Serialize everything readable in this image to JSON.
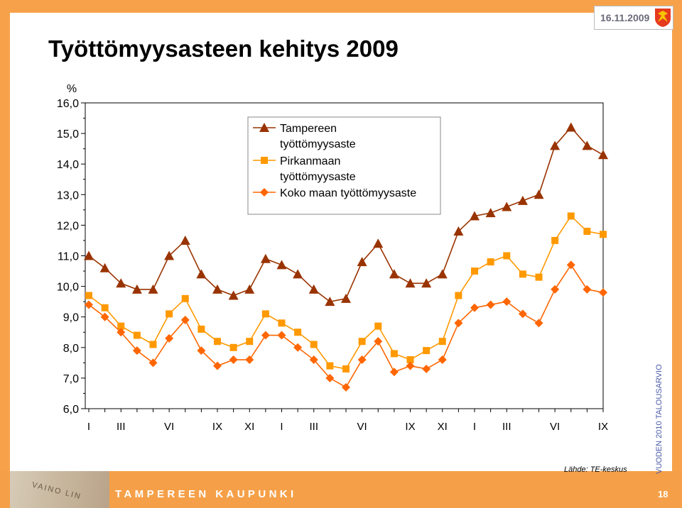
{
  "header": {
    "date": "16.11.2009"
  },
  "title": "Työttömyysasteen kehitys 2009",
  "side_label": "VUODEN 2010 TALOUSARVIO",
  "source": "Lähde: TE-keskus",
  "footer": {
    "city": "TAMPEREEN KAUPUNKI",
    "page": "18",
    "decoration_text": "VAINO LIN"
  },
  "colors": {
    "frame": "#f7a24a",
    "tampere": "#993300",
    "pirkanmaa": "#ff9900",
    "koko_maa": "#ff6600"
  },
  "chart_data": {
    "type": "line",
    "title": "Työttömyysasteen kehitys 2009",
    "ylabel": "%",
    "ylim": [
      6,
      16
    ],
    "yticks": [
      "6,0",
      "7,0",
      "8,0",
      "9,0",
      "10,0",
      "11,0",
      "12,0",
      "13,0",
      "14,0",
      "15,0",
      "16,0"
    ],
    "x_tick_labels": [
      "I",
      "III",
      "VI",
      "IX",
      "XI",
      "I",
      "III",
      "VI",
      "IX",
      "XI",
      "I",
      "III",
      "VI",
      "IX"
    ],
    "x_tick_positions": [
      1,
      3,
      6,
      9,
      11,
      13,
      15,
      18,
      21,
      23,
      25,
      27,
      30,
      33
    ],
    "legend_position": "top-center",
    "grid": false,
    "series": [
      {
        "name": "Tampereen työttömyysaste",
        "marker": "triangle",
        "values": [
          11.0,
          10.6,
          10.1,
          9.9,
          9.9,
          11.0,
          11.5,
          10.4,
          9.9,
          9.7,
          9.9,
          10.9,
          10.7,
          10.4,
          9.9,
          9.5,
          9.6,
          10.8,
          11.4,
          10.4,
          10.1,
          10.1,
          10.4,
          11.8,
          12.3,
          12.4,
          12.6,
          12.8,
          13.0,
          14.6,
          15.2,
          14.6,
          14.3
        ]
      },
      {
        "name": "Pirkanmaan työttömyysaste",
        "marker": "square",
        "values": [
          9.7,
          9.3,
          8.7,
          8.4,
          8.1,
          9.1,
          9.6,
          8.6,
          8.2,
          8.0,
          8.2,
          9.1,
          8.8,
          8.5,
          8.1,
          7.4,
          7.3,
          8.2,
          8.7,
          7.8,
          7.6,
          7.9,
          8.2,
          9.7,
          10.5,
          10.8,
          11.0,
          10.4,
          10.3,
          11.5,
          12.3,
          11.8,
          11.7
        ]
      },
      {
        "name": "Koko maan työttömyysaste",
        "marker": "diamond",
        "values": [
          9.4,
          9.0,
          8.5,
          7.9,
          7.5,
          8.3,
          8.9,
          7.9,
          7.4,
          7.6,
          7.6,
          8.4,
          8.4,
          8.0,
          7.6,
          7.0,
          6.7,
          7.6,
          8.2,
          7.2,
          7.4,
          7.3,
          7.6,
          8.8,
          9.3,
          9.4,
          9.5,
          9.1,
          8.8,
          9.9,
          10.7,
          9.9,
          9.8
        ]
      }
    ]
  }
}
